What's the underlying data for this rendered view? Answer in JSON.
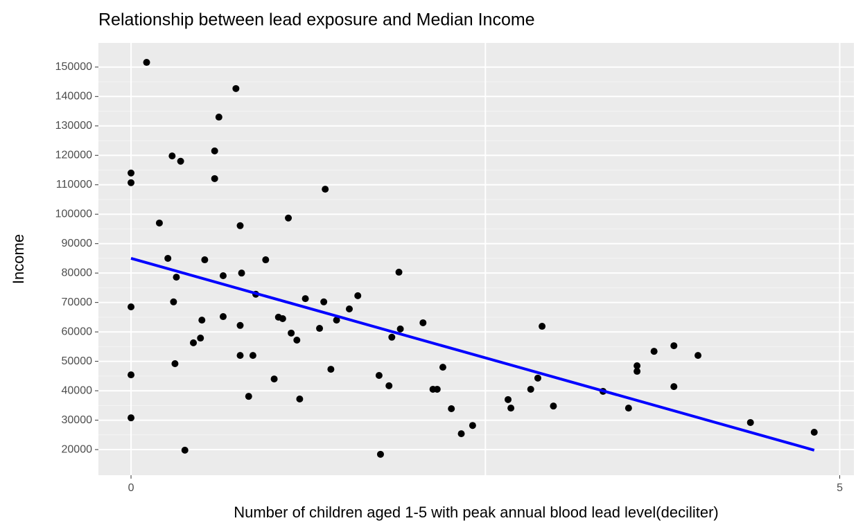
{
  "chart_data": {
    "type": "scatter",
    "title": "Relationship between lead exposure and Median Income",
    "x_label": "Number of children aged 1-5 with peak annual blood lead level(deciliter)",
    "y_label": "Income",
    "xlim": [
      -0.23,
      5.1
    ],
    "ylim": [
      11300,
      158200
    ],
    "xticks": [
      0,
      5
    ],
    "x_gridlines": [
      0,
      2.5,
      5
    ],
    "yticks": [
      20000,
      30000,
      40000,
      50000,
      60000,
      70000,
      80000,
      90000,
      100000,
      110000,
      120000,
      130000,
      140000,
      150000
    ],
    "grid": true,
    "series": [
      {
        "type": "scatter",
        "color": "#000000",
        "x": [
          0.11,
          0,
          0,
          0,
          0,
          0,
          0.2,
          0.26,
          0.29,
          0.35,
          0.32,
          0.3,
          0.31,
          0.38,
          0.44,
          0.49,
          0.5,
          0.52,
          0.59,
          0.59,
          0.62,
          0.74,
          0.65,
          0.65,
          0.77,
          0.78,
          0.77,
          0.77,
          0.83,
          0.86,
          0.88,
          0.95,
          1.01,
          1.04,
          1.07,
          1.11,
          1.13,
          1.17,
          1.19,
          1.23,
          1.33,
          1.36,
          1.37,
          1.41,
          1.45,
          1.54,
          1.6,
          1.75,
          1.76,
          1.82,
          1.84,
          1.89,
          1.9,
          2.06,
          2.13,
          2.16,
          2.2,
          2.26,
          2.33,
          2.41,
          2.66,
          2.68,
          2.82,
          2.87,
          2.9,
          2.98,
          3.33,
          3.51,
          3.57,
          3.57,
          3.69,
          3.83,
          3.83,
          4.0,
          4.37,
          4.82
        ],
        "values": [
          151600,
          114000,
          110700,
          68500,
          45400,
          30800,
          97000,
          85000,
          119800,
          118000,
          78600,
          70200,
          49200,
          19800,
          56300,
          57900,
          64000,
          84500,
          121500,
          112100,
          133000,
          142700,
          79100,
          65200,
          96100,
          80000,
          62200,
          52000,
          38100,
          52000,
          72800,
          84500,
          44000,
          65000,
          64500,
          98700,
          59600,
          57200,
          37200,
          71300,
          61200,
          70200,
          108500,
          47300,
          64000,
          67800,
          72300,
          45200,
          18400,
          41700,
          58200,
          80300,
          61000,
          63100,
          40500,
          40500,
          48000,
          33900,
          25400,
          28200,
          37000,
          34100,
          40500,
          44300,
          61900,
          34800,
          39800,
          34100,
          46600,
          48500,
          53400,
          55300,
          41400,
          52000,
          29200,
          25900
        ]
      },
      {
        "type": "line",
        "color": "#0000ff",
        "x": [
          0,
          4.82
        ],
        "values": [
          85000,
          19800
        ]
      }
    ]
  }
}
